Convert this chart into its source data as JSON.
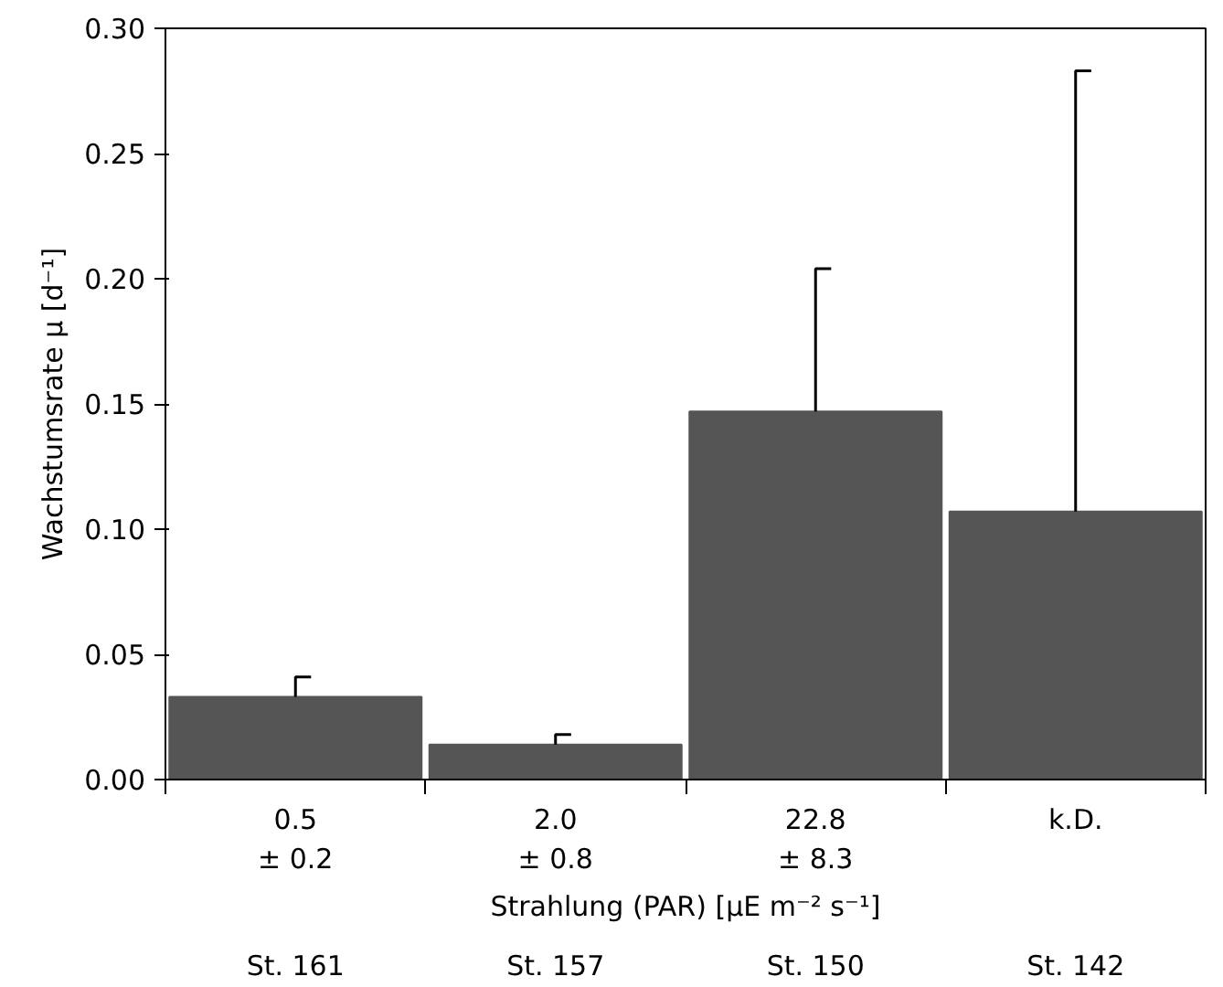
{
  "chart_data": {
    "type": "bar",
    "categories": [
      "0.5\n± 0.2",
      "2.0\n± 0.8",
      "22.8\n± 8.3",
      "k.D."
    ],
    "values": [
      0.033,
      0.014,
      0.147,
      0.107
    ],
    "errors": [
      [
        0.033,
        0.041
      ],
      [
        0.014,
        0.018
      ],
      [
        0.147,
        0.204
      ],
      [
        0.107,
        0.283
      ]
    ],
    "color": "#555555",
    "ylim": [
      0,
      0.3
    ],
    "yticks": [
      {
        "value": 0,
        "label": "0.00"
      },
      {
        "value": 0.05,
        "label": "0.05"
      },
      {
        "value": 0.1,
        "label": "0.10"
      },
      {
        "value": 0.15,
        "label": "0.15"
      },
      {
        "value": 0.2,
        "label": "0.20"
      },
      {
        "value": 0.25,
        "label": "0.25"
      },
      {
        "value": 0.3,
        "label": "0.30"
      }
    ],
    "ylabel": "Wachstumsrate μ [d⁻¹]",
    "xlabel": "Strahlung (PAR) [μE m⁻² s⁻¹]",
    "annotations": [
      "St. 161",
      "St. 157",
      "St. 150",
      "St. 142"
    ],
    "grid": false
  }
}
